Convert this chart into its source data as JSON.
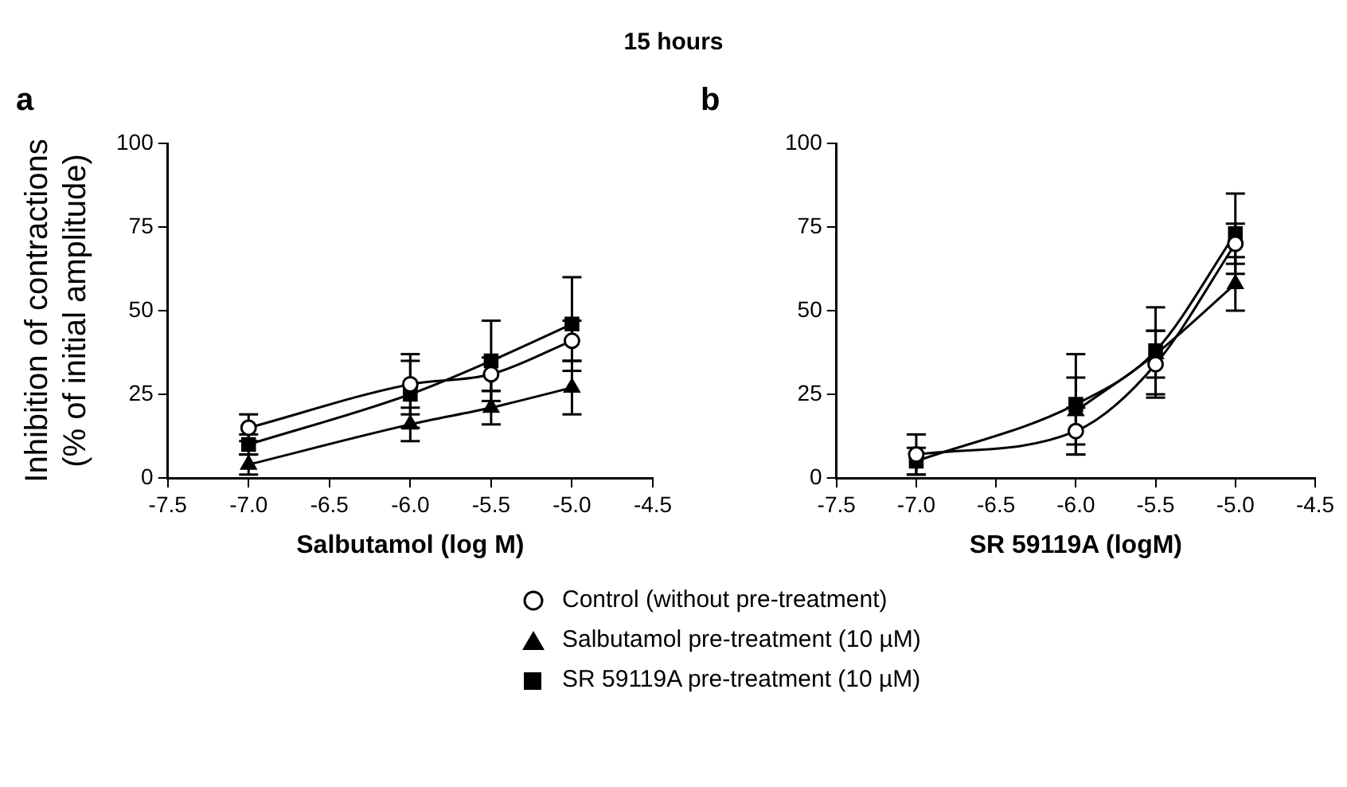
{
  "chart_data": [
    {
      "type": "line",
      "title": "15 hours",
      "annotations": [
        "a"
      ],
      "xlabel": "Salbutamol (log M)",
      "ylabel": "Inhibition of contractions (% of initial amplitude)",
      "x": [
        -7.0,
        -6.0,
        -5.5,
        -5.0
      ],
      "series": [
        {
          "name": "Control (without pre-treatment)",
          "color": "#000000",
          "marker": "circle",
          "values": [
            15,
            28,
            31,
            41
          ],
          "errors": [
            4,
            9,
            5,
            6
          ]
        },
        {
          "name": "Salbutamol pre-treatment (10 µM)",
          "color": "#000000",
          "marker": "triangle",
          "values": [
            4,
            16,
            21,
            27
          ],
          "errors": [
            3,
            5,
            5,
            8
          ]
        },
        {
          "name": "SR 59119A pre-treatment (10 µM)",
          "color": "#000000",
          "marker": "square",
          "values": [
            10,
            25,
            35,
            46
          ],
          "errors": [
            3,
            10,
            12,
            14
          ]
        }
      ],
      "xlim": [
        -7.5,
        -4.5
      ],
      "xticks": [
        {
          "value": -7.5,
          "label": "-7.5"
        },
        {
          "value": -7.0,
          "label": "-7.0"
        },
        {
          "value": -6.5,
          "label": "-6.5"
        },
        {
          "value": -6.0,
          "label": "-6.0"
        },
        {
          "value": -5.5,
          "label": "-5.5"
        },
        {
          "value": -5.0,
          "label": "-5.0"
        },
        {
          "value": -4.5,
          "label": "-4.5"
        }
      ],
      "ylim": [
        0,
        100
      ],
      "yticks": [
        0,
        25,
        50,
        75,
        100
      ],
      "grid": false,
      "legend": "bottom",
      "line_style": "solid"
    },
    {
      "type": "line",
      "annotations": [
        "b"
      ],
      "xlabel": "SR 59119A (logM)",
      "x": [
        -7.0,
        -6.0,
        -5.5,
        -5.0
      ],
      "series": [
        {
          "color": "#000000",
          "marker": "circle",
          "values": [
            7,
            14,
            34,
            70
          ],
          "errors": [
            6,
            7,
            10,
            6
          ]
        },
        {
          "color": "#000000",
          "marker": "triangle",
          "values": [
            null,
            20,
            37,
            58
          ],
          "errors": [
            null,
            10,
            7,
            8
          ]
        },
        {
          "color": "#000000",
          "marker": "square",
          "values": [
            5,
            22,
            38,
            73
          ],
          "errors": [
            4,
            15,
            13,
            12
          ]
        }
      ],
      "xlim": [
        -7.5,
        -4.5
      ],
      "xticks": [
        {
          "value": -7.5,
          "label": "-7.5"
        },
        {
          "value": -7.0,
          "label": "-7.0"
        },
        {
          "value": -6.5,
          "label": "-6.5"
        },
        {
          "value": -6.0,
          "label": "-6.0"
        },
        {
          "value": -5.5,
          "label": "-5.5"
        },
        {
          "value": -5.0,
          "label": "-5.0"
        },
        {
          "value": -4.5,
          "label": "-4.5"
        }
      ],
      "ylim": [
        0,
        100
      ],
      "yticks": [
        0,
        25,
        50,
        75,
        100
      ],
      "grid": false,
      "line_style": "solid"
    }
  ]
}
